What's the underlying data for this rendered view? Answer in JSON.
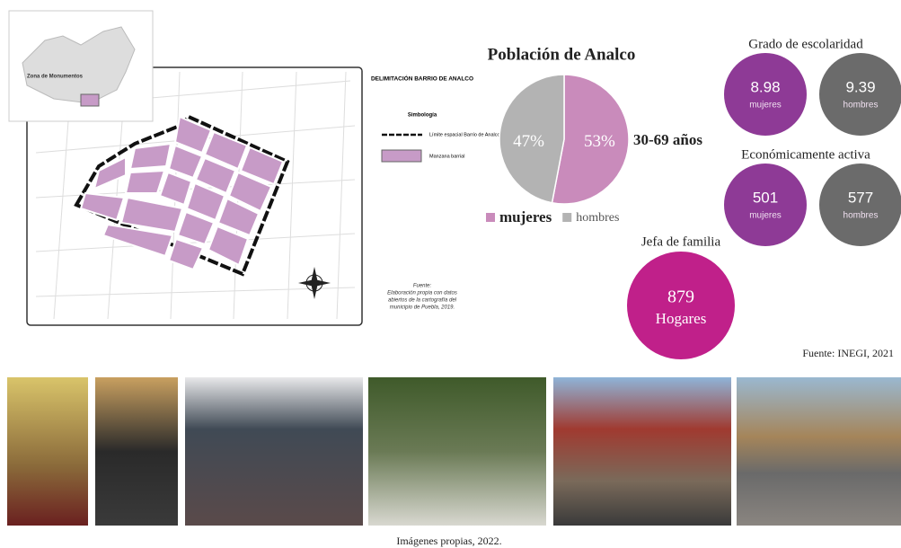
{
  "map": {
    "inset_label": "Zona de Monumentos",
    "legend_title": "DELIMITACIÓN BARRIO DE ANALCO",
    "legend_subtitle": "Simbología",
    "legend_items": [
      "Límite espacial Barrio de Analco",
      "Manzana barrial"
    ],
    "source": [
      "Fuente:",
      "Elaboración propia con datos",
      "abiertos de la cartografía del",
      "municipio de Puebla, 2019."
    ]
  },
  "population": {
    "title": "Población de Analco",
    "age_range": "30-69 años",
    "slices": [
      {
        "name": "mujeres",
        "color": "#c98bbb",
        "value": 53,
        "value_label": "53%"
      },
      {
        "name": "hombres",
        "color": "#b3b3b3",
        "value": 47,
        "value_label": "47%"
      }
    ]
  },
  "schooling": {
    "title": "Grado de escolaridad",
    "circles": [
      {
        "value": 8.98,
        "label": "mujeres",
        "color": "#8e3a96"
      },
      {
        "value": 9.39,
        "label": "hombres",
        "color": "#6b6b6b"
      }
    ]
  },
  "economic": {
    "title": "Económicamente activa",
    "circles": [
      {
        "value": 501,
        "label": "mujeres",
        "color": "#8e3a96"
      },
      {
        "value": 577,
        "label": "hombres",
        "color": "#6b6b6b"
      }
    ]
  },
  "head_of_family": {
    "title": "Jefa de familia",
    "value": 879,
    "unit": "Hogares",
    "color": "#c0208a"
  },
  "stats_source": "Fuente: INEGI, 2021",
  "photos_caption": "Imágenes propias, 2022."
}
